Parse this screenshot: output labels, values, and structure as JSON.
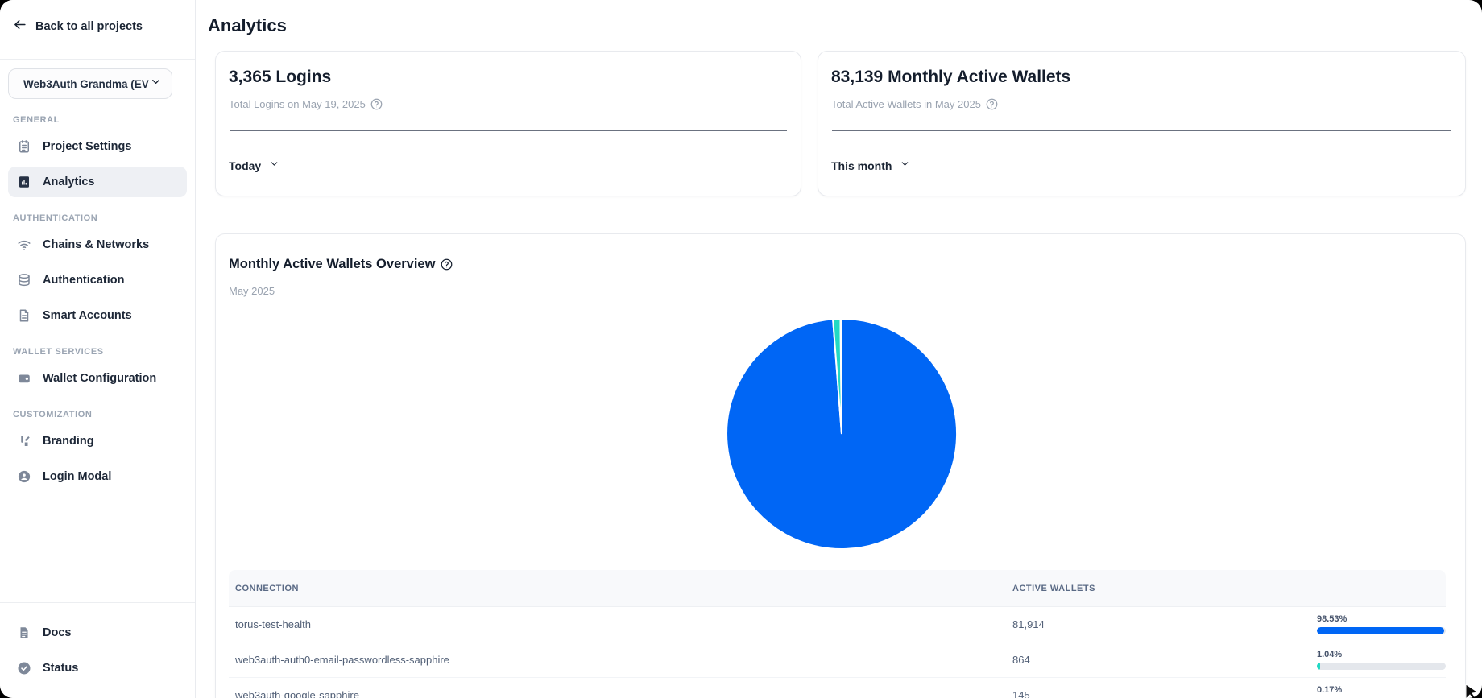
{
  "colors": {
    "accent_blue": "#0066f5",
    "accent_teal": "#21d9c4",
    "bar_track": "#e4e7ec"
  },
  "sidebar": {
    "back_label": "Back to all projects",
    "project_selector": {
      "value": "Web3Auth Grandma (EV"
    },
    "sections": [
      {
        "label": "GENERAL",
        "items": [
          {
            "label": "Project Settings",
            "icon": "clipboard-icon",
            "active": false
          },
          {
            "label": "Analytics",
            "icon": "analytics-icon",
            "active": true
          }
        ]
      },
      {
        "label": "AUTHENTICATION",
        "items": [
          {
            "label": "Chains & Networks",
            "icon": "wifi-icon",
            "active": false
          },
          {
            "label": "Authentication",
            "icon": "database-icon",
            "active": false
          },
          {
            "label": "Smart Accounts",
            "icon": "file-icon",
            "active": false
          }
        ]
      },
      {
        "label": "WALLET SERVICES",
        "items": [
          {
            "label": "Wallet Configuration",
            "icon": "wallet-icon",
            "active": false
          }
        ]
      },
      {
        "label": "CUSTOMIZATION",
        "items": [
          {
            "label": "Branding",
            "icon": "brush-icon",
            "active": false
          },
          {
            "label": "Login Modal",
            "icon": "user-icon",
            "active": false
          }
        ]
      }
    ],
    "footer_items": [
      {
        "label": "Docs",
        "icon": "doc-icon"
      },
      {
        "label": "Status",
        "icon": "check-circle-icon"
      }
    ]
  },
  "page": {
    "title": "Analytics"
  },
  "stat_cards": [
    {
      "headline": "3,365 Logins",
      "subtitle": "Total Logins on May 19, 2025",
      "range_label": "Today"
    },
    {
      "headline": "83,139 Monthly Active Wallets",
      "subtitle": "Total Active Wallets in May 2025",
      "range_label": "This month"
    }
  ],
  "overview_card": {
    "title": "Monthly Active Wallets Overview",
    "subtitle": "May 2025"
  },
  "chart_data": {
    "type": "pie",
    "title": "Monthly Active Wallets Overview",
    "period": "May 2025",
    "legend_position": "none",
    "slices": [
      {
        "label": "torus-test-health",
        "value": 81914,
        "pct": 98.53,
        "color": "#0066f5"
      },
      {
        "label": "web3auth-auth0-email-passwordless-sapphire",
        "value": 864,
        "pct": 1.04,
        "color": "#21d9c4"
      },
      {
        "label": "web3auth-google-sapphire",
        "value": 145,
        "pct": 0.17,
        "color": "#21d9c4"
      }
    ]
  },
  "table": {
    "columns": [
      "CONNECTION",
      "ACTIVE WALLETS"
    ],
    "rows": [
      {
        "connection": "torus-test-health",
        "active_wallets": "81,914",
        "percent": "98.53%",
        "pct_value": 98.53,
        "bar_color": "#0066f5"
      },
      {
        "connection": "web3auth-auth0-email-passwordless-sapphire",
        "active_wallets": "864",
        "percent": "1.04%",
        "pct_value": 1.04,
        "bar_color": "#21d9c4"
      },
      {
        "connection": "web3auth-google-sapphire",
        "active_wallets": "145",
        "percent": "0.17%",
        "pct_value": 0.17,
        "bar_color": "#21d9c4"
      }
    ]
  }
}
